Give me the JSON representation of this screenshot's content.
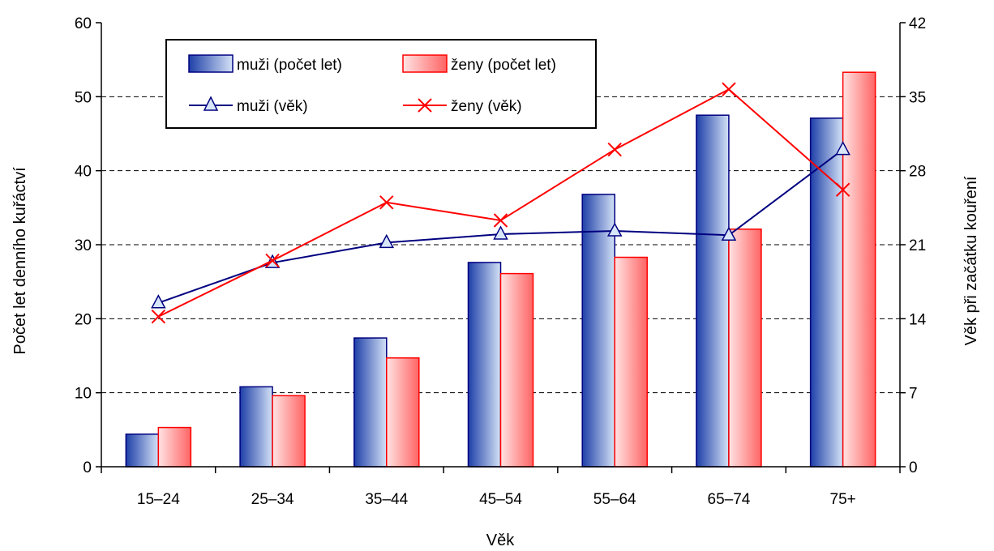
{
  "chart_data": {
    "type": "bar",
    "categories": [
      "15–24",
      "25–34",
      "35–44",
      "45–54",
      "55–64",
      "65–74",
      "75+"
    ],
    "xlabel": "Věk",
    "ylabel": "Počet let denního kuřáctví",
    "y2label": "Věk při začátku kouření",
    "ylim": [
      0,
      60
    ],
    "yticks": [
      0,
      10,
      20,
      30,
      40,
      50,
      60
    ],
    "y2lim": [
      0,
      42
    ],
    "y2ticks": [
      0,
      7,
      14,
      21,
      28,
      35,
      42
    ],
    "grid": "horizontal dashed",
    "legend_position": "top-left",
    "bar_series": [
      {
        "name": "muži (počet let)",
        "color": "#2b50b8",
        "values": [
          4.4,
          10.8,
          17.4,
          27.6,
          36.8,
          47.5,
          47.1
        ]
      },
      {
        "name": "ženy (počet let)",
        "color": "#ff5a5a",
        "values": [
          5.3,
          9.6,
          14.7,
          26.1,
          28.3,
          32.1,
          53.3
        ]
      }
    ],
    "line_series": [
      {
        "name": "muži (věk)",
        "color": "#000080",
        "marker": "triangle",
        "axis": "right",
        "values": [
          15.5,
          19.3,
          21.2,
          22.0,
          22.3,
          21.9,
          30.0
        ]
      },
      {
        "name": "ženy (věk)",
        "color": "#ff0000",
        "marker": "x",
        "axis": "right",
        "values": [
          14.2,
          19.5,
          25.0,
          23.3,
          30.0,
          35.7,
          26.2
        ]
      }
    ]
  }
}
